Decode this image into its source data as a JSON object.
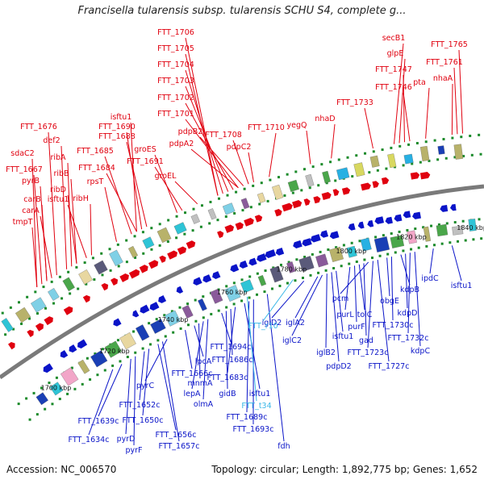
{
  "header": {
    "title": "Francisella tularensis subsp. tularensis SCHU S4, complete g..."
  },
  "footer": {
    "accession": "Accession: NC_006570",
    "summary": "Topology: circular; Length: 1,892,775 bp; Genes: 1,652"
  },
  "colors": {
    "forward": "#e0000f",
    "reverse": "#0a14c8",
    "rna": "#3ab7e8",
    "backbone": "#7a7a7a",
    "tick": "#1a8a2a"
  },
  "ticks": [
    "1700 kbp",
    "1720 kbp",
    "1740 kbp",
    "1760 kbp",
    "1780 kbp",
    "1800 kbp",
    "1820 kbp",
    "1840 kbp"
  ],
  "forward_labels": [
    "FTT_1706",
    "FTT_1705",
    "FTT_1704",
    "FTT_1703",
    "FTT_1702",
    "FTT_1701",
    "FTT_1708",
    "FTT_1710",
    "pdpB2",
    "pdpA2",
    "pdpC2",
    "isftu1",
    "FTT_1690",
    "FTT_1688",
    "FTT_1685",
    "FTT_1684",
    "groES",
    "FTT_1691",
    "groEL",
    "FTT_1676",
    "def2",
    "ribA",
    "sdaC2",
    "FTT_1667",
    "pyrB",
    "ribB",
    "rpsT",
    "ribD",
    "isftu1",
    "ribH",
    "carB",
    "carA",
    "tmpT",
    "yegQ",
    "nhaD",
    "FTT_1733",
    "secB1",
    "glpE",
    "FTT_1747",
    "FTT_1746",
    "pta",
    "FTT_1765",
    "FTT_1761",
    "nhaA"
  ],
  "reverse_labels": [
    "FTT_1634c",
    "FTT_1639c",
    "pyrD",
    "pyrF",
    "FTT_1652c",
    "FTT_1650c",
    "FTT_1656c",
    "FTT_1657c",
    "pyrC",
    "FTT_1666c",
    "lpcA",
    "mnmA",
    "lepA",
    "olmA",
    "gidB",
    "FTT_1694c",
    "FTT_1686c",
    "FTT_1683c",
    "isftu1",
    "FTT_1689c",
    "FTT_1693c",
    "fdh",
    "iglD2",
    "iglA2",
    "iglC2",
    "iglB2",
    "pdpD2",
    "isftu1",
    "purL",
    "purF",
    "tolC",
    "gad",
    "pcm",
    "FTT_1723c",
    "FTT_1727c",
    "obgE",
    "FTT_1730c",
    "kdpB",
    "kdpD",
    "FTT_1732c",
    "kdpC",
    "ipdC",
    "isftu1"
  ],
  "rna_labels": [
    "FTT_r10",
    "FTT_t34"
  ]
}
